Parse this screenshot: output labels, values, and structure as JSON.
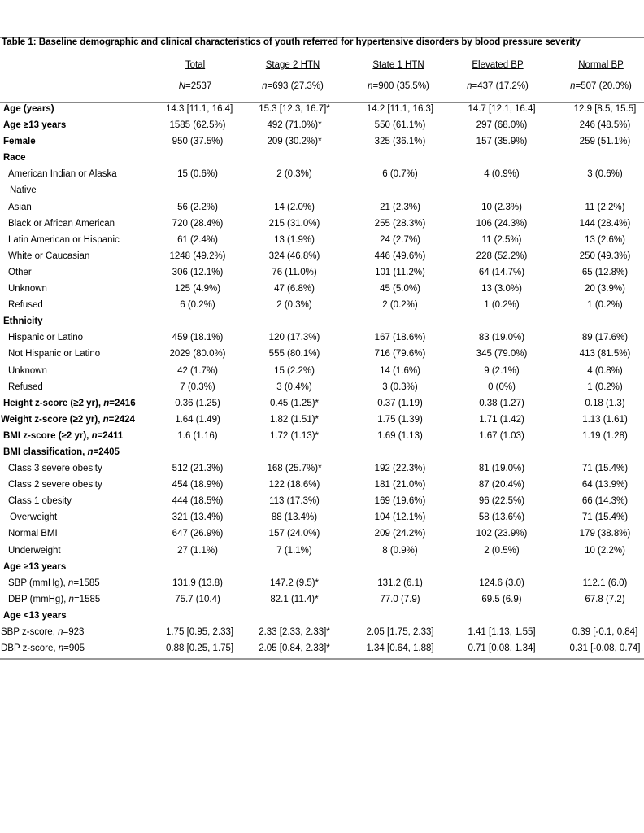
{
  "caption": "Table 1: Baseline demographic and clinical characteristics of youth referred for hypertensive disorders by blood pressure severity",
  "columns": [
    {
      "title": "Total",
      "n_prefix": "N",
      "n_value": "=2537"
    },
    {
      "title": "Stage 2 HTN",
      "n_prefix": "n",
      "n_value": "=693 (27.3%)"
    },
    {
      "title": "State 1 HTN",
      "n_prefix": "n",
      "n_value": "=900 (35.5%)"
    },
    {
      "title": "Elevated BP",
      "n_prefix": "n",
      "n_value": "=437 (17.2%)"
    },
    {
      "title": "Normal BP",
      "n_prefix": "n",
      "n_value": "=507 (20.0%)"
    }
  ],
  "rows": [
    {
      "label": "Age (years)",
      "bold": true,
      "values": [
        "14.3 [11.1, 16.4]",
        "15.3 [12.3, 16.7]*",
        "14.2 [11.1, 16.3]",
        "14.7 [12.1, 16.4]",
        "12.9 [8.5, 15.5]"
      ]
    },
    {
      "label": "Age ≥13 years",
      "bold": true,
      "values": [
        "1585 (62.5%)",
        "492 (71.0%)*",
        "550 (61.1%)",
        "297 (68.0%)",
        "246 (48.5%)"
      ]
    },
    {
      "label": "Female",
      "bold": true,
      "values": [
        "950 (37.5%)",
        "209 (30.2%)*",
        "325 (36.1%)",
        "157 (35.9%)",
        "259 (51.1%)"
      ]
    },
    {
      "label": "Race",
      "bold": true,
      "values": [
        "",
        "",
        "",
        "",
        ""
      ]
    },
    {
      "label": "American Indian or Alaska",
      "indent": 1,
      "values": [
        "15 (0.6%)",
        "2 (0.3%)",
        "6 (0.7%)",
        "4 (0.9%)",
        "3 (0.6%)"
      ]
    },
    {
      "label": "Native",
      "indent": 2,
      "values": [
        "",
        "",
        "",
        "",
        ""
      ]
    },
    {
      "label": "Asian",
      "indent": 1,
      "values": [
        "56 (2.2%)",
        "14 (2.0%)",
        "21 (2.3%)",
        "10 (2.3%)",
        "11 (2.2%)"
      ]
    },
    {
      "label": "Black or African American",
      "indent": 1,
      "values": [
        "720 (28.4%)",
        "215 (31.0%)",
        "255 (28.3%)",
        "106 (24.3%)",
        "144 (28.4%)"
      ]
    },
    {
      "label": "Latin American or Hispanic",
      "indent": 1,
      "values": [
        "61 (2.4%)",
        "13 (1.9%)",
        "24 (2.7%)",
        "11 (2.5%)",
        "13 (2.6%)"
      ]
    },
    {
      "label": "White or Caucasian",
      "indent": 1,
      "values": [
        "1248 (49.2%)",
        "324 (46.8%)",
        "446 (49.6%)",
        "228 (52.2%)",
        "250 (49.3%)"
      ]
    },
    {
      "label": "Other",
      "indent": 1,
      "values": [
        "306 (12.1%)",
        "76 (11.0%)",
        "101 (11.2%)",
        "64 (14.7%)",
        "65 (12.8%)"
      ]
    },
    {
      "label": "Unknown",
      "indent": 1,
      "values": [
        "125 (4.9%)",
        "47 (6.8%)",
        "45 (5.0%)",
        "13 (3.0%)",
        "20 (3.9%)"
      ]
    },
    {
      "label": "Refused",
      "indent": 1,
      "values": [
        "6 (0.2%)",
        "2 (0.3%)",
        "2 (0.2%)",
        "1 (0.2%)",
        "1 (0.2%)"
      ]
    },
    {
      "label": "Ethnicity",
      "bold": true,
      "values": [
        "",
        "",
        "",
        "",
        ""
      ]
    },
    {
      "label": "Hispanic or Latino",
      "indent": 1,
      "values": [
        "459 (18.1%)",
        "120 (17.3%)",
        "167 (18.6%)",
        "83 (19.0%)",
        "89 (17.6%)"
      ]
    },
    {
      "label": "Not Hispanic or Latino",
      "indent": 1,
      "values": [
        "2029 (80.0%)",
        "555 (80.1%)",
        "716 (79.6%)",
        "345 (79.0%)",
        "413 (81.5%)"
      ]
    },
    {
      "label": "Unknown",
      "indent": 1,
      "values": [
        "42 (1.7%)",
        "15 (2.2%)",
        "14 (1.6%)",
        "9 (2.1%)",
        "4 (0.8%)"
      ]
    },
    {
      "label": "Refused",
      "indent": 1,
      "values": [
        "7 (0.3%)",
        "3 (0.4%)",
        "3 (0.3%)",
        "0 (0%)",
        "1 (0.2%)"
      ]
    },
    {
      "label": "Height z-score (≥2 yr), ",
      "label_italic": "n",
      "label_tail": "=2416",
      "bold": true,
      "values": [
        "0.36 (1.25)",
        "0.45 (1.25)*",
        "0.37 (1.19)",
        "0.38 (1.27)",
        "0.18 (1.3)"
      ]
    },
    {
      "label": "Weight z-score (≥2 yr), ",
      "label_italic": "n",
      "label_tail": "=2424",
      "bold": true,
      "flush": true,
      "values": [
        "1.64 (1.49)",
        "1.82 (1.51)*",
        "1.75 (1.39)",
        "1.71 (1.42)",
        "1.13 (1.61)"
      ]
    },
    {
      "label": "BMI z-score (≥2 yr), ",
      "label_italic": "n",
      "label_tail": "=2411",
      "bold": true,
      "values": [
        "1.6 (1.16)",
        "1.72 (1.13)*",
        "1.69 (1.13)",
        "1.67 (1.03)",
        "1.19 (1.28)"
      ]
    },
    {
      "label": "BMI classification, ",
      "label_italic": "n",
      "label_tail": "=2405",
      "bold": true,
      "values": [
        "",
        "",
        "",
        "",
        ""
      ]
    },
    {
      "label": "Class 3 severe obesity",
      "indent": 1,
      "values": [
        "512 (21.3%)",
        "168 (25.7%)*",
        "192 (22.3%)",
        "81 (19.0%)",
        "71 (15.4%)"
      ]
    },
    {
      "label": "Class 2 severe obesity",
      "indent": 1,
      "values": [
        "454 (18.9%)",
        "122 (18.6%)",
        "181 (21.0%)",
        "87 (20.4%)",
        "64 (13.9%)"
      ]
    },
    {
      "label": "Class 1 obesity",
      "indent": 1,
      "values": [
        "444 (18.5%)",
        "113 (17.3%)",
        "169 (19.6%)",
        "96 (22.5%)",
        "66 (14.3%)"
      ]
    },
    {
      "label": "Overweight",
      "indent": 2,
      "values": [
        "321 (13.4%)",
        "88 (13.4%)",
        "104 (12.1%)",
        "58 (13.6%)",
        "71 (15.4%)"
      ]
    },
    {
      "label": "Normal BMI",
      "indent": 1,
      "values": [
        "647 (26.9%)",
        "157 (24.0%)",
        "209 (24.2%)",
        "102 (23.9%)",
        "179 (38.8%)"
      ]
    },
    {
      "label": "Underweight",
      "indent": 1,
      "values": [
        "27 (1.1%)",
        "7 (1.1%)",
        "8 (0.9%)",
        "2 (0.5%)",
        "10 (2.2%)"
      ]
    },
    {
      "label": "Age ≥13 years",
      "bold": true,
      "values": [
        "",
        "",
        "",
        "",
        ""
      ]
    },
    {
      "label": "SBP (mmHg), ",
      "label_italic": "n",
      "label_tail": "=1585",
      "indent": 1,
      "values": [
        "131.9 (13.8)",
        "147.2 (9.5)*",
        "131.2 (6.1)",
        "124.6 (3.0)",
        "112.1 (6.0)"
      ]
    },
    {
      "label": "DBP (mmHg), ",
      "label_italic": "n",
      "label_tail": "=1585",
      "indent": 1,
      "values": [
        "75.7 (10.4)",
        "82.1 (11.4)*",
        "77.0 (7.9)",
        "69.5 (6.9)",
        "67.8 (7.2)"
      ]
    },
    {
      "label": "Age <13 years",
      "bold": true,
      "values": [
        "",
        "",
        "",
        "",
        ""
      ]
    },
    {
      "label": "SBP z-score, ",
      "label_italic": "n",
      "label_tail": "=923",
      "flush": true,
      "values": [
        "1.75 [0.95, 2.33]",
        "2.33 [2.33, 2.33]*",
        "2.05 [1.75, 2.33]",
        "1.41 [1.13, 1.55]",
        "0.39 [-0.1, 0.84]"
      ]
    },
    {
      "label": "DBP z-score, ",
      "label_italic": "n",
      "label_tail": "=905",
      "flush": true,
      "values": [
        "0.88 [0.25, 1.75]",
        "2.05 [0.84, 2.33]*",
        "1.34 [0.64, 1.88]",
        "0.71 [0.08, 1.34]",
        "0.31 [-0.08, 0.74]"
      ]
    }
  ]
}
